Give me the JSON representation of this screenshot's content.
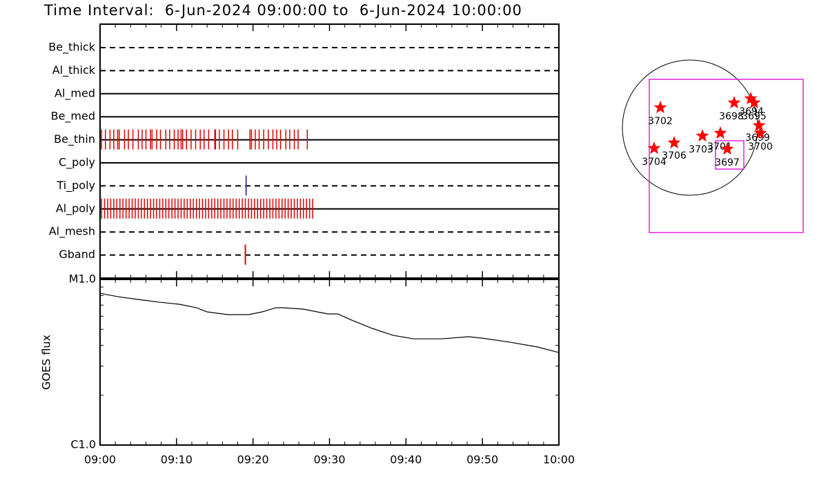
{
  "title": "Time Interval:  6-Jun-2024 09:00:00 to  6-Jun-2024 10:00:00",
  "chart_data": [
    {
      "type": "timeline",
      "categories": [
        "Be_thick",
        "Al_thick",
        "Al_med",
        "Be_med",
        "Be_thin",
        "C_poly",
        "Ti_poly",
        "Al_poly",
        "Al_mesh",
        "Gband"
      ],
      "line_styles": [
        "dashed",
        "dashed",
        "solid",
        "solid",
        "solid",
        "solid",
        "dashed",
        "solid",
        "dashed",
        "dashed"
      ],
      "xlim": [
        540,
        600
      ],
      "events": [
        {
          "row": 4,
          "color": "#e00000",
          "x": [
            540.2,
            540.7,
            541.3,
            541.8,
            542.3,
            542.5,
            543.2,
            543.7,
            544.3,
            545.0,
            545.5,
            546.0,
            546.6,
            546.8,
            547.4,
            547.9,
            548.6,
            549.1,
            549.7,
            550.2,
            550.6,
            550.8,
            551.3,
            551.9,
            552.5,
            553.1,
            553.6,
            554.2,
            555.0,
            555.1,
            555.6,
            556.2,
            556.8,
            557.3,
            558.0,
            559.6,
            559.8,
            560.3,
            560.8,
            561.4,
            562.0,
            562.6,
            563.1,
            563.6,
            564.3,
            564.8,
            565.4,
            565.9,
            567.1
          ]
        },
        {
          "row": 6,
          "color": "#4848a8",
          "x": [
            559.1
          ]
        },
        {
          "row": 7,
          "color": "#e00000",
          "x": [
            540.2,
            540.6,
            541.0,
            541.4,
            541.8,
            542.2,
            542.6,
            543.0,
            543.4,
            543.8,
            544.2,
            544.6,
            545.0,
            545.4,
            545.8,
            546.2,
            546.6,
            547.0,
            547.4,
            547.8,
            548.2,
            548.6,
            549.0,
            549.4,
            549.8,
            550.2,
            550.6,
            551.0,
            551.4,
            551.8,
            552.2,
            552.6,
            553.0,
            553.4,
            553.8,
            554.2,
            554.6,
            555.0,
            555.4,
            555.8,
            556.2,
            556.6,
            557.0,
            557.4,
            557.8,
            558.2,
            558.6,
            559.0,
            559.4,
            559.8,
            560.2,
            560.6,
            561.0,
            561.4,
            561.8,
            562.2,
            562.6,
            563.0,
            563.4,
            563.8,
            564.2,
            564.6,
            565.0,
            565.4,
            565.8,
            566.2,
            566.6,
            567.0,
            567.4,
            567.8
          ]
        },
        {
          "row": 9,
          "color": "#e00000",
          "x": [
            559.0
          ]
        }
      ]
    },
    {
      "type": "line",
      "y_label": "GOES flux",
      "log_scale": true,
      "color": "#000000",
      "xlim": [
        540,
        600
      ],
      "xticks": [
        {
          "value": 540,
          "label": "09:00"
        },
        {
          "value": 550,
          "label": "09:10"
        },
        {
          "value": 560,
          "label": "09:20"
        },
        {
          "value": 570,
          "label": "09:30"
        },
        {
          "value": 580,
          "label": "09:40"
        },
        {
          "value": 590,
          "label": "09:50"
        },
        {
          "value": 600,
          "label": "10:00"
        }
      ],
      "xminorticks": [
        542,
        544,
        546,
        548,
        552,
        554,
        556,
        558,
        562,
        564,
        566,
        568,
        572,
        574,
        576,
        578,
        582,
        584,
        586,
        588,
        592,
        594,
        596,
        598
      ],
      "ylim": [
        1e-06,
        1e-05
      ],
      "yticks": [
        {
          "value": 1e-06,
          "label": "C1.0"
        },
        {
          "value": 1e-05,
          "label": "M1.0"
        }
      ],
      "yminorticks": [
        2e-06,
        3e-06,
        4e-06,
        5e-06,
        6e-06,
        7e-06,
        8e-06,
        9e-06
      ],
      "x": [
        540,
        542.3,
        545.0,
        547.7,
        550.4,
        552.6,
        554.0,
        556.7,
        559.4,
        561.2,
        563.0,
        563.9,
        566.6,
        568.4,
        569.8,
        571.1,
        572.9,
        575.6,
        578.3,
        581.0,
        584.6,
        588.2,
        590.0,
        593.6,
        597.2,
        600
      ],
      "values": [
        8.25e-06,
        7.87e-06,
        7.57e-06,
        7.29e-06,
        7.08e-06,
        6.75e-06,
        6.37e-06,
        6.13e-06,
        6.13e-06,
        6.37e-06,
        6.75e-06,
        6.75e-06,
        6.62e-06,
        6.37e-06,
        6.19e-06,
        6.19e-06,
        5.68e-06,
        5.06e-06,
        4.6e-06,
        4.38e-06,
        4.38e-06,
        4.51e-06,
        4.42e-06,
        4.18e-06,
        3.91e-06,
        3.62e-06
      ]
    }
  ],
  "map": {
    "regions": [
      "3702",
      "3704",
      "3706",
      "3703",
      "3701",
      "3697",
      "3698",
      "3694",
      "3695",
      "3699",
      "3700"
    ]
  }
}
